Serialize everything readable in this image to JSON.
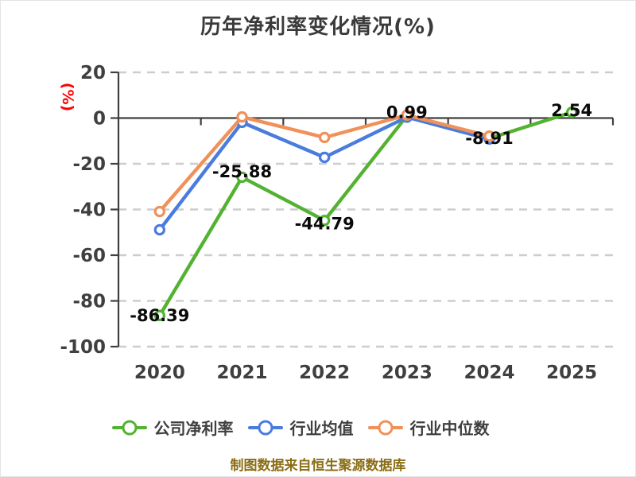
{
  "title": "历年净利率变化情况(%)",
  "y_unit_label": "(%)",
  "caption": "制图数据来自恒生聚源数据库",
  "colors": {
    "title_text": "#3a3a3a",
    "axis_text": "#3f3f3f",
    "y_unit_label": "#ff0000",
    "gridline": "#cdcdcd",
    "axis_line": "#3f3f3f",
    "value_label": "#0a0a0a",
    "caption_text": "#8b6d14",
    "background": "#ffffff"
  },
  "chart_data": {
    "type": "line",
    "title": "历年净利率变化情况(%)",
    "categories": [
      "2020",
      "2021",
      "2022",
      "2023",
      "2024",
      "2025"
    ],
    "series": [
      {
        "name": "公司净利率",
        "color": "#53b231",
        "values": [
          -86.39,
          -25.88,
          -44.79,
          0.99,
          -8.91,
          2.54
        ],
        "point_labels": [
          "-86.39",
          "-25.88",
          "-44.79",
          "0.99",
          "-8.91",
          "2.54"
        ]
      },
      {
        "name": "行业均值",
        "color": "#4a7cde",
        "values": [
          -48.9,
          -1.9,
          -17.2,
          0.4,
          -9.2,
          null
        ]
      },
      {
        "name": "行业中位数",
        "color": "#f0915a",
        "values": [
          -40.9,
          0.5,
          -8.5,
          1.3,
          -7.9,
          null
        ]
      }
    ],
    "xlabel": "",
    "ylabel": "(%)",
    "ylim": [
      -100,
      20
    ],
    "yticks": [
      20,
      0,
      -20,
      -40,
      -60,
      -80,
      -100
    ],
    "grid": "horizontal-dashed",
    "x_axis_position": "zero",
    "legend_position": "bottom",
    "marker": "circle-white-fill"
  }
}
